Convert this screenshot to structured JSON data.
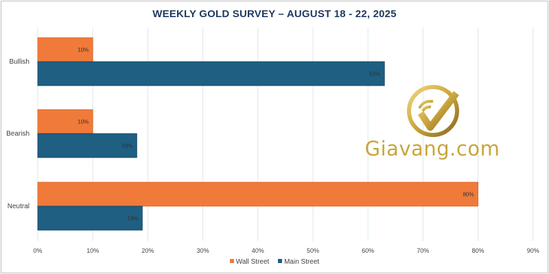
{
  "chart_data": {
    "type": "bar",
    "orientation": "horizontal",
    "title": "WEEKLY GOLD SURVEY – AUGUST 18  - 22, 2025",
    "categories": [
      "Bullish",
      "Bearish",
      "Neutral"
    ],
    "series": [
      {
        "name": "Wall Street",
        "values": [
          10,
          10,
          80
        ],
        "labels": [
          "10%",
          "10%",
          "80%"
        ],
        "color": "#f07a3a"
      },
      {
        "name": "Main Street",
        "values": [
          63,
          18,
          19
        ],
        "labels": [
          "63%",
          "18%",
          "19%"
        ],
        "color": "#1e5f82"
      }
    ],
    "xlim": [
      0,
      90
    ],
    "xticks": [
      "0%",
      "10%",
      "20%",
      "30%",
      "40%",
      "50%",
      "60%",
      "70%",
      "80%",
      "90%"
    ],
    "grid": true,
    "legend_position": "bottom"
  },
  "watermark": {
    "text": "Giavang.com",
    "color": "#c9a53c",
    "icon": "gold-check-circle-icon"
  }
}
